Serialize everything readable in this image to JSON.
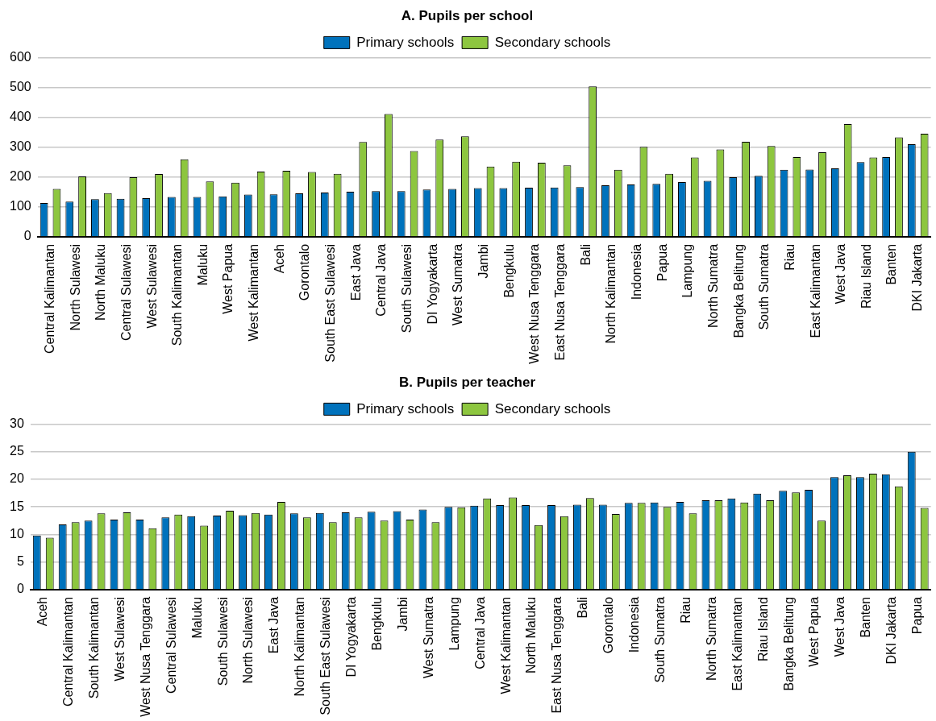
{
  "chart_data": [
    {
      "type": "bar",
      "title": "A. Pupils per school",
      "categories": [
        "Central Kalimantan",
        "North Sulawesi",
        "North Maluku",
        "Central Sulawesi",
        "West Sulawesi",
        "South Kalimantan",
        "Maluku",
        "West Papua",
        "West Kalimantan",
        "Aceh",
        "Gorontalo",
        "South East Sulawesi",
        "East Java",
        "Central Java",
        "South Sulawesi",
        "DI Yogyakarta",
        "West Sumatra",
        "Jambi",
        "Bengkulu",
        "West Nusa Tenggara",
        "East Nusa Tenggara",
        "Bali",
        "North Kalimantan",
        "Indonesia",
        "Papua",
        "Lampung",
        "North Sumatra",
        "Bangka Belitung",
        "South Sumatra",
        "Riau",
        "East Kalimantan",
        "West Java",
        "Riau Island",
        "Banten",
        "DKI Jakarta"
      ],
      "series": [
        {
          "name": "Primary schools",
          "color": "#0072bc",
          "values": [
            113,
            118,
            126,
            127,
            129,
            133,
            133,
            135,
            141,
            142,
            145,
            148,
            151,
            153,
            153,
            158,
            160,
            163,
            163,
            164,
            165,
            166,
            172,
            175,
            177,
            183,
            187,
            199,
            204,
            224,
            225,
            229,
            250,
            267,
            310
          ]
        },
        {
          "name": "Secondary schools",
          "color": "#8dc63f",
          "values": [
            160,
            202,
            146,
            199,
            210,
            259,
            185,
            181,
            218,
            221,
            217,
            211,
            317,
            411,
            287,
            325,
            336,
            235,
            251,
            248,
            239,
            503,
            224,
            301,
            211,
            265,
            292,
            318,
            304,
            267,
            283,
            377,
            265,
            333,
            345
          ]
        }
      ],
      "ylim": [
        0,
        600
      ],
      "yticks": [
        0,
        100,
        200,
        300,
        400,
        500,
        600
      ],
      "grid": "y",
      "legend": "top"
    },
    {
      "type": "bar",
      "title": "B. Pupils per teacher",
      "categories": [
        "Aceh",
        "Central Kalimantan",
        "South Kalimantan",
        "West Sulawesi",
        "West Nusa Tenggara",
        "Central Sulawesi",
        "Maluku",
        "South Sulawesi",
        "North Sulawesi",
        "East Java",
        "North Kalimantan",
        "South East Sulawesi",
        "DI Yogyakarta",
        "Bengkulu",
        "Jambi",
        "West Sumatra",
        "Lampung",
        "Central Java",
        "West Kalimantan",
        "North Maluku",
        "East Nusa Tenggara",
        "Bali",
        "Gorontalo",
        "Indonesia",
        "South Sumatra",
        "Riau",
        "North Sumatra",
        "East Kalimantan",
        "Riau Island",
        "Bangka Belitung",
        "West Papua",
        "West Java",
        "Banten",
        "DKI Jakarta",
        "Papua"
      ],
      "series": [
        {
          "name": "Primary schools",
          "color": "#0072bc",
          "values": [
            9.8,
            11.8,
            12.5,
            12.7,
            12.7,
            13.1,
            13.3,
            13.4,
            13.5,
            13.6,
            13.8,
            13.9,
            14.0,
            14.1,
            14.2,
            14.5,
            15.0,
            15.2,
            15.3,
            15.3,
            15.3,
            15.4,
            15.4,
            15.7,
            15.8,
            15.9,
            16.2,
            16.5,
            17.4,
            17.9,
            18.1,
            20.4,
            20.4,
            20.9,
            25.0
          ]
        },
        {
          "name": "Secondary schools",
          "color": "#8dc63f",
          "values": [
            9.4,
            12.2,
            13.8,
            14.0,
            11.1,
            13.6,
            11.6,
            14.3,
            13.9,
            15.9,
            13.1,
            12.2,
            13.1,
            12.5,
            12.7,
            12.2,
            14.9,
            16.5,
            16.7,
            11.7,
            13.3,
            16.6,
            13.7,
            15.7,
            15.0,
            13.8,
            16.2,
            15.8,
            16.2,
            17.6,
            12.5,
            20.7,
            21.0,
            18.7,
            14.8
          ]
        }
      ],
      "ylim": [
        0,
        30
      ],
      "yticks": [
        0,
        5,
        10,
        15,
        20,
        25,
        30
      ],
      "grid": "y",
      "legend": "top"
    }
  ]
}
